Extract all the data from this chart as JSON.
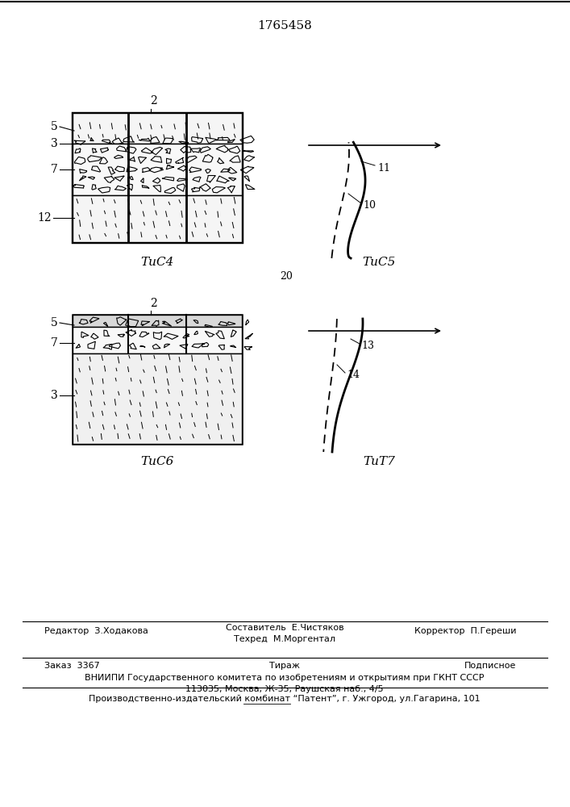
{
  "title": "1765458",
  "bg_color": "#ffffff",
  "fig4_label": "ΤиС4",
  "fig5_label": "ΤиС5",
  "fig6_label": "ΤиС6",
  "fig7_label": "ΤиТ7",
  "num_20": "20",
  "footer_editor": "Редактор  З.Ходакова",
  "footer_compiler": "Составитель  Е.Чистяков",
  "footer_techred": "Техред  М.Моргентал",
  "footer_corrector": "Корректор  П.Гереши",
  "footer_order": "Заказ  3367",
  "footer_tirazh": "Тираж",
  "footer_podpisnoe": "Подписное",
  "footer_vniipи": "ВНИИПИ Государственного комитета по изобретениям и открытиям при ГКНТ СССР",
  "footer_address": "113035, Москва, Ж-35, Раушская наб., 4/5",
  "footer_patent": "Производственно-издательский комбинат “Патент”, г. Ужгород, ул.Гагарина, 101"
}
